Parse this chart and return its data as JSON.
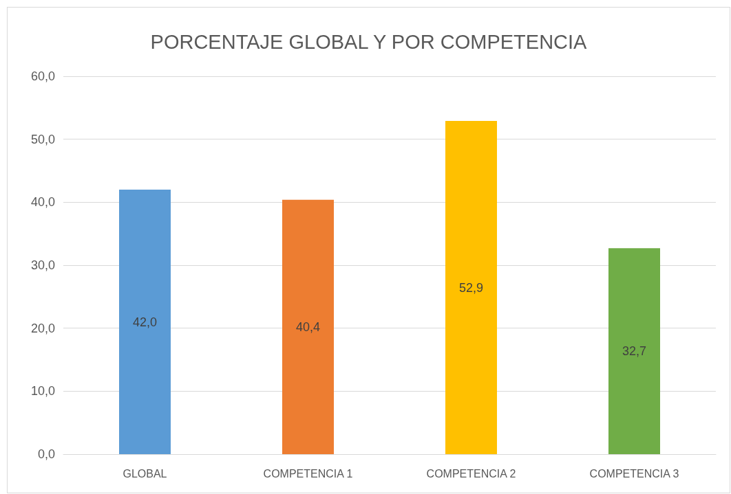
{
  "chart_data": {
    "type": "bar",
    "title": "PORCENTAJE GLOBAL Y POR COMPETENCIA",
    "categories": [
      "GLOBAL",
      "COMPETENCIA 1",
      "COMPETENCIA 2",
      "COMPETENCIA 3"
    ],
    "values": [
      42.0,
      40.4,
      52.9,
      32.7
    ],
    "colors": [
      "#5b9bd5",
      "#ed7d31",
      "#ffc000",
      "#70ad47"
    ],
    "value_labels": [
      "42,0",
      "40,4",
      "52,9",
      "32,7"
    ],
    "ylim": [
      0,
      60
    ],
    "yticks": [
      {
        "value": 0,
        "label": "0,0"
      },
      {
        "value": 10,
        "label": "10,0"
      },
      {
        "value": 20,
        "label": "20,0"
      },
      {
        "value": 30,
        "label": "30,0"
      },
      {
        "value": 40,
        "label": "40,0"
      },
      {
        "value": 50,
        "label": "50,0"
      },
      {
        "value": 60,
        "label": "60,0"
      }
    ],
    "grid": "y"
  }
}
